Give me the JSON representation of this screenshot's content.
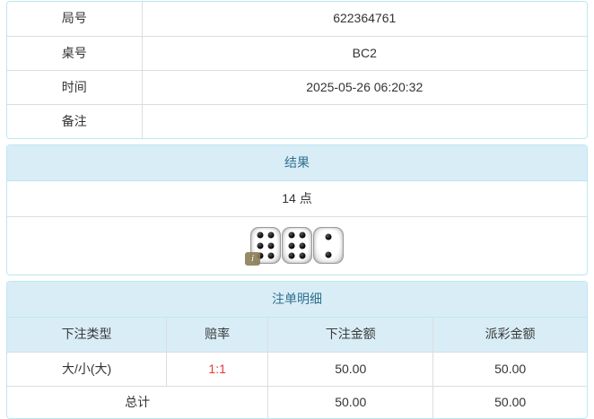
{
  "game_info": {
    "rows": [
      {
        "label": "局号",
        "value": "622364761"
      },
      {
        "label": "桌号",
        "value": "BC2"
      },
      {
        "label": "时间",
        "value": "2025-05-26 06:20:32"
      },
      {
        "label": "备注",
        "value": ""
      }
    ]
  },
  "result": {
    "heading": "结果",
    "points": "14 点",
    "dice": [
      6,
      6,
      2
    ],
    "info_badge": "i"
  },
  "bet_details": {
    "heading": "注单明细",
    "columns": [
      "下注类型",
      "赔率",
      "下注金额",
      "派彩金额"
    ],
    "rows": [
      {
        "bet_type": "大/小(大)",
        "odds": "1:1",
        "bet_amount": "50.00",
        "payout_amount": "50.00"
      }
    ],
    "total": {
      "label": "总计",
      "bet_amount": "50.00",
      "payout_amount": "50.00"
    }
  },
  "colors": {
    "panel_border": "#bce8f1",
    "heading_bg": "#d9edf7",
    "heading_text": "#31708f",
    "cell_border": "#dddddd",
    "body_text": "#333333",
    "odds_red": "#e4393c"
  }
}
